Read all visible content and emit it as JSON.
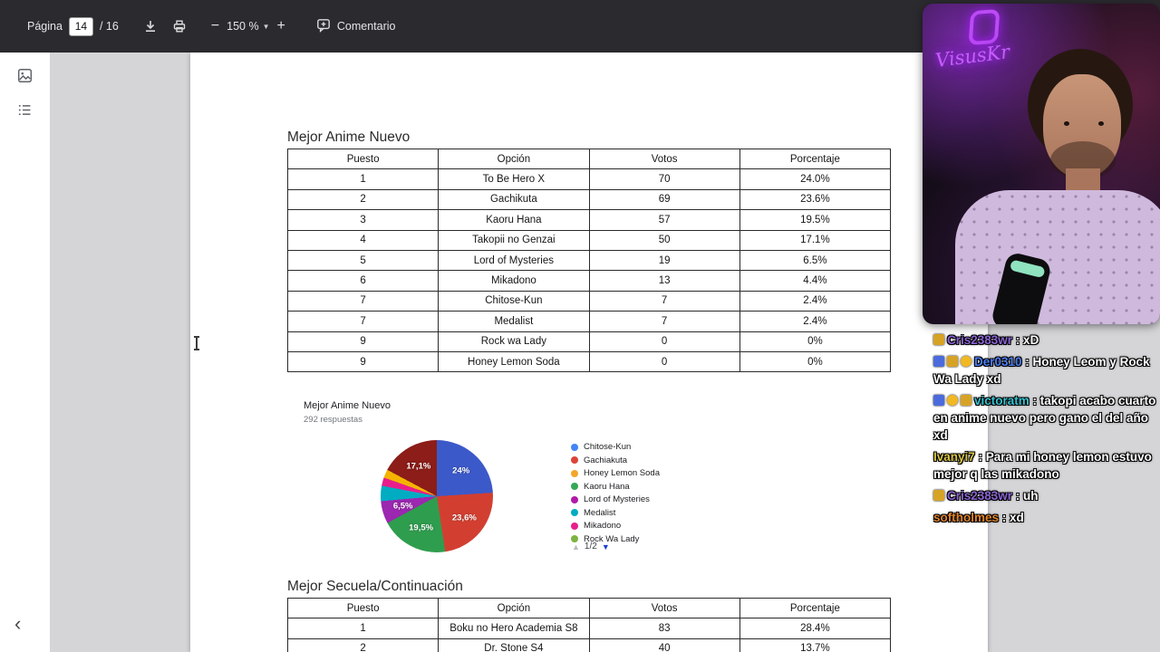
{
  "toolbar": {
    "page_label": "Página",
    "page_value": "14",
    "page_total": "/ 16",
    "zoom_value": "150 %",
    "comment_label": "Comentario"
  },
  "document": {
    "sections": [
      {
        "heading": "Mejor Anime Nuevo"
      },
      {
        "heading": "Mejor Secuela/Continuación"
      }
    ],
    "tables": [
      {
        "headers": [
          "Puesto",
          "Opción",
          "Votos",
          "Porcentaje"
        ],
        "rows": [
          [
            "1",
            "To Be Hero X",
            "70",
            "24.0%"
          ],
          [
            "2",
            "Gachikuta",
            "69",
            "23.6%"
          ],
          [
            "3",
            "Kaoru Hana",
            "57",
            "19.5%"
          ],
          [
            "4",
            "Takopii no Genzai",
            "50",
            "17.1%"
          ],
          [
            "5",
            "Lord of Mysteries",
            "19",
            "6.5%"
          ],
          [
            "6",
            "Mikadono",
            "13",
            "4.4%"
          ],
          [
            "7",
            "Chitose-Kun",
            "7",
            "2.4%"
          ],
          [
            "7",
            "Medalist",
            "7",
            "2.4%"
          ],
          [
            "9",
            "Rock wa Lady",
            "0",
            "0%"
          ],
          [
            "9",
            "Honey Lemon Soda",
            "0",
            "0%"
          ]
        ]
      },
      {
        "headers": [
          "Puesto",
          "Opción",
          "Votos",
          "Porcentaje"
        ],
        "rows": [
          [
            "1",
            "Boku no Hero Academia S8",
            "83",
            "28.4%"
          ],
          [
            "2",
            "Dr. Stone S4",
            "40",
            "13.7%"
          ]
        ]
      }
    ]
  },
  "chart_data": {
    "type": "pie",
    "title": "Mejor Anime Nuevo",
    "subtitle": "292 respuestas",
    "slices": [
      {
        "label": "To Be Hero X",
        "pct": 24.0,
        "color": "#3c59c9",
        "display": "24%"
      },
      {
        "label": "Gachikuta",
        "pct": 23.6,
        "color": "#d23f31",
        "display": "23,6%"
      },
      {
        "label": "Kaoru Hana",
        "pct": 19.5,
        "color": "#2f9d4e",
        "display": "19,5%"
      },
      {
        "label": "Lord of Mysteries",
        "pct": 6.5,
        "color": "#9c27b0",
        "display": "6,5%"
      },
      {
        "label": "Mikadono",
        "pct": 4.4,
        "color": "#00acc1",
        "display": ""
      },
      {
        "label": "Chitose-Kun",
        "pct": 2.4,
        "color": "#e91e8c",
        "display": ""
      },
      {
        "label": "Medalist",
        "pct": 2.4,
        "color": "#f4b400",
        "display": ""
      },
      {
        "label": "Takopii no Genzai",
        "pct": 17.1,
        "color": "#8c1d18",
        "display": "17,1%"
      }
    ],
    "legend": [
      {
        "label": "Chitose-Kun",
        "color": "#4285f4"
      },
      {
        "label": "Gachiakuta",
        "color": "#db4437"
      },
      {
        "label": "Honey Lemon Soda",
        "color": "#f4a62a"
      },
      {
        "label": "Kaoru Hana",
        "color": "#34a853"
      },
      {
        "label": "Lord of Mysteries",
        "color": "#b01aa7"
      },
      {
        "label": "Medalist",
        "color": "#00acc1"
      },
      {
        "label": "Mikadono",
        "color": "#e91e8c"
      },
      {
        "label": "Rock Wa Lady",
        "color": "#7cb342"
      }
    ],
    "pagination": "1/2",
    "legend_position": "right"
  },
  "chat": {
    "messages": [
      {
        "badges": [
          "trophy"
        ],
        "user": "Cris2383wr",
        "color": "#8a63d2",
        "text": "xD"
      },
      {
        "badges": [
          "blue",
          "trophy",
          "coin"
        ],
        "user": "Der0310",
        "color": "#4c7ef3",
        "text": "Honey Leom y Rock Wa Lady xd"
      },
      {
        "badges": [
          "blue",
          "coin",
          "trophy"
        ],
        "user": "victoratm",
        "color": "#35c2cf",
        "text": "takopi acabo cuarto en anime nuevo pero gano el del año xd"
      },
      {
        "badges": [],
        "user": "Ivanyi7",
        "color": "#d9c545",
        "text": "Para mi honey lemon estuvo mejor q las mikadono"
      },
      {
        "badges": [
          "trophy"
        ],
        "user": "Cris2383wr",
        "color": "#8a63d2",
        "text": "uh"
      },
      {
        "badges": [],
        "user": "softholmes",
        "color": "#e0842a",
        "text": "xd"
      }
    ]
  },
  "webcam": {
    "watermark": "VisusKr"
  }
}
